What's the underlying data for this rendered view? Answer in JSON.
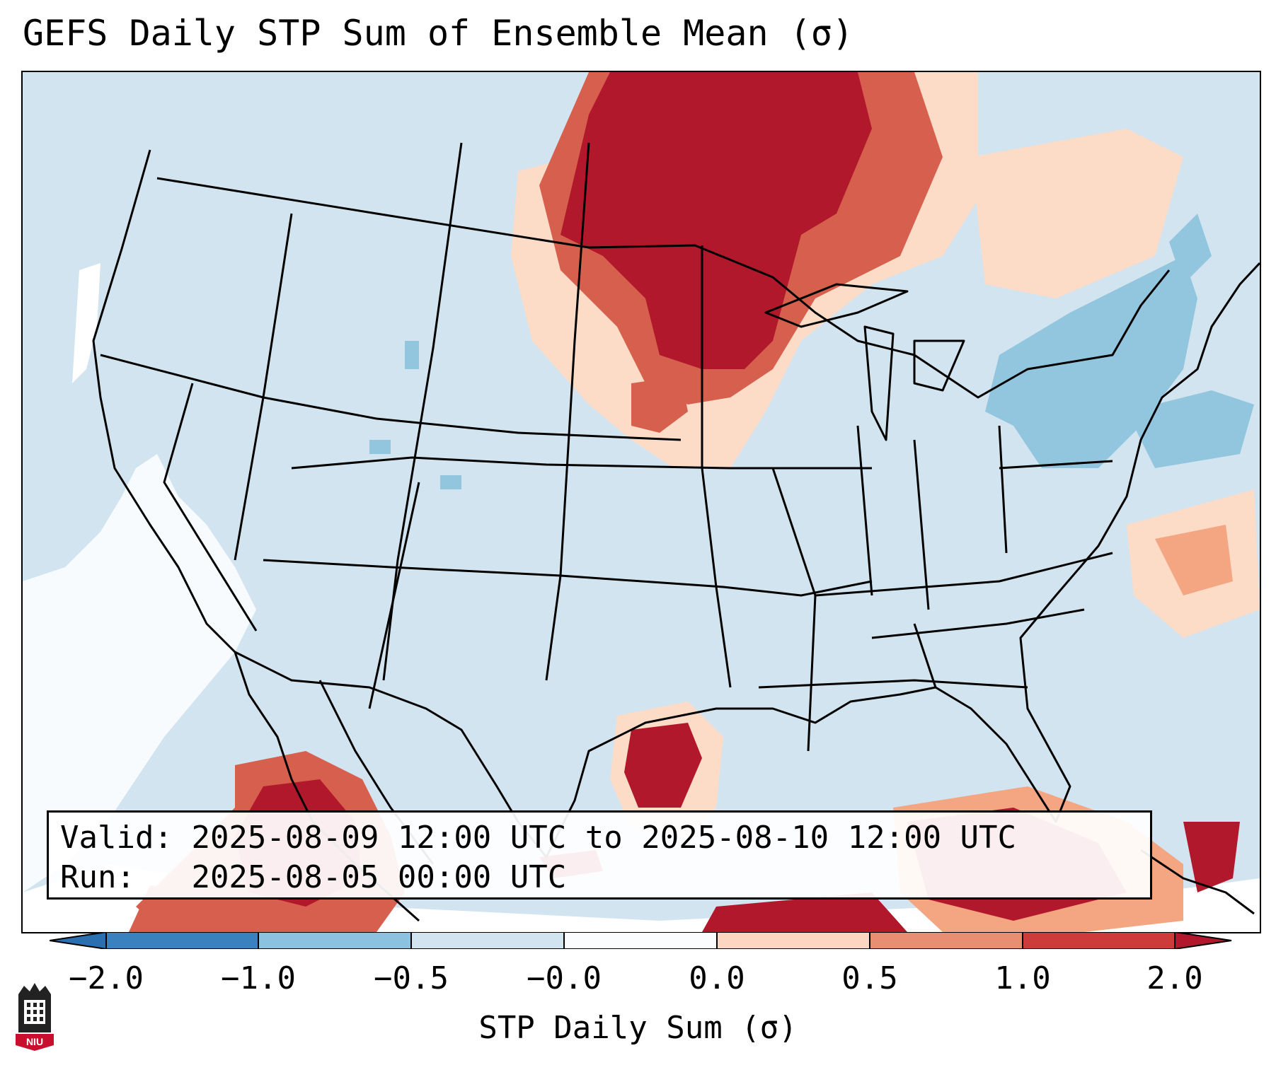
{
  "title": "GEFS Daily STP Sum of Ensemble Mean (σ)",
  "valid_label": "Valid:",
  "valid_value": "2025-08-09 12:00 UTC to 2025-08-10 12:00 UTC",
  "run_label": "Run:",
  "run_value": "2025-08-05 00:00 UTC",
  "colorbar": {
    "label": "STP Daily Sum (σ)",
    "ticks": [
      "−2.0",
      "−1.0",
      "−0.5",
      "−0.0",
      "0.0",
      "0.5",
      "1.0",
      "2.0"
    ],
    "colors": [
      "#3a82bf",
      "#8cc2df",
      "#d2e4f0",
      "#fbfcfd",
      "#fcd6c0",
      "#e88f73",
      "#cd3c3a"
    ],
    "extend_low_color": "#2a6fb0",
    "extend_high_color": "#b2182b"
  },
  "map_fill_colors": {
    "background": "#d2e4f0",
    "dark_red": "#b2182b",
    "medium_red": "#d6604d",
    "light_red": "#f4a582",
    "pale_red": "#fcdbc7",
    "light_blue": "#92c5de",
    "white": "#ffffff"
  },
  "logo_text": "NIU"
}
